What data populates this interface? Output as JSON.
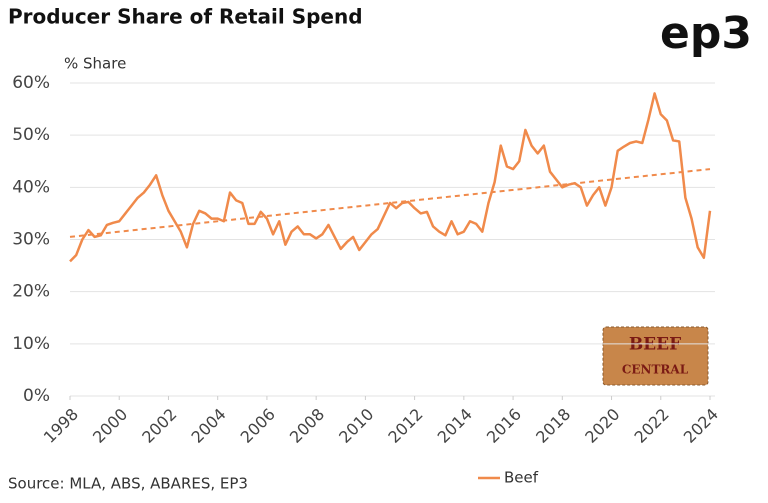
{
  "chart_data": {
    "type": "line",
    "title": "Producer Share of Retail Spend",
    "y_label": "% Share",
    "source": "Source: MLA, ABS, ABARES, EP3",
    "logo": "ep3",
    "badge": [
      "BEEF",
      "CENTRAL"
    ],
    "xlim": [
      1998,
      2024
    ],
    "xticks": [
      1998,
      2000,
      2002,
      2004,
      2006,
      2008,
      2010,
      2012,
      2014,
      2016,
      2018,
      2020,
      2022,
      2024
    ],
    "ylim": [
      0,
      60
    ],
    "yticks": [
      {
        "value": 0,
        "label": "0%"
      },
      {
        "value": 10,
        "label": "10%"
      },
      {
        "value": 20,
        "label": "20%"
      },
      {
        "value": 30,
        "label": "30%"
      },
      {
        "value": 40,
        "label": "40%"
      },
      {
        "value": 50,
        "label": "50%"
      },
      {
        "value": 60,
        "label": "60%"
      }
    ],
    "grid": true,
    "x": [
      1998,
      1998.25,
      1998.5,
      1998.75,
      1999,
      1999.25,
      1999.5,
      1999.75,
      2000,
      2000.25,
      2000.5,
      2000.75,
      2001,
      2001.25,
      2001.5,
      2001.75,
      2002,
      2002.25,
      2002.5,
      2002.75,
      2003,
      2003.25,
      2003.5,
      2003.75,
      2004,
      2004.25,
      2004.5,
      2004.75,
      2005,
      2005.25,
      2005.5,
      2005.75,
      2006,
      2006.25,
      2006.5,
      2006.75,
      2007,
      2007.25,
      2007.5,
      2007.75,
      2008,
      2008.25,
      2008.5,
      2008.75,
      2009,
      2009.25,
      2009.5,
      2009.75,
      2010,
      2010.25,
      2010.5,
      2010.75,
      2011,
      2011.25,
      2011.5,
      2011.75,
      2012,
      2012.25,
      2012.5,
      2012.75,
      2013,
      2013.25,
      2013.5,
      2013.75,
      2014,
      2014.25,
      2014.5,
      2014.75,
      2015,
      2015.25,
      2015.5,
      2015.75,
      2016,
      2016.25,
      2016.5,
      2016.75,
      2017,
      2017.25,
      2017.5,
      2017.75,
      2018,
      2018.25,
      2018.5,
      2018.75,
      2019,
      2019.25,
      2019.5,
      2019.75,
      2020,
      2020.25,
      2020.5,
      2020.75,
      2021,
      2021.25,
      2021.5,
      2021.75,
      2022,
      2022.25,
      2022.5,
      2022.75,
      2023,
      2023.25,
      2023.5,
      2023.75,
      2024
    ],
    "series": [
      {
        "name": "Beef",
        "color": "#f08a4b",
        "values": [
          25.8,
          27,
          30,
          31.8,
          30.5,
          30.8,
          32.8,
          33.2,
          33.5,
          35,
          36.5,
          38,
          39,
          40.5,
          42.3,
          38.5,
          35.5,
          33.5,
          31.5,
          28.5,
          33,
          35.5,
          35,
          34,
          34,
          33.5,
          39,
          37.5,
          37,
          33,
          33,
          35.3,
          34,
          31,
          33.5,
          29,
          31.5,
          32.5,
          31,
          31,
          30.2,
          31,
          32.8,
          30.5,
          28.2,
          29.5,
          30.5,
          28,
          29.5,
          31,
          32,
          34.5,
          37,
          36,
          37,
          37.2,
          36,
          35,
          35.3,
          32.5,
          31.5,
          30.8,
          33.5,
          31,
          31.5,
          33.5,
          33,
          31.5,
          37,
          41,
          48,
          44,
          43.5,
          45,
          51,
          48,
          46.5,
          48,
          43,
          41.5,
          40,
          40.5,
          40.8,
          40,
          36.5,
          38.5,
          40,
          36.5,
          40,
          47,
          47.8,
          48.5,
          48.8,
          48.5,
          53,
          58,
          54,
          52.8,
          49,
          48.8,
          38,
          34,
          28.5,
          26.5,
          35.5
        ]
      }
    ],
    "trend": {
      "x": [
        1998,
        2024
      ],
      "values": [
        30.5,
        43.5
      ],
      "color": "#f08a4b",
      "dashed": true
    }
  }
}
